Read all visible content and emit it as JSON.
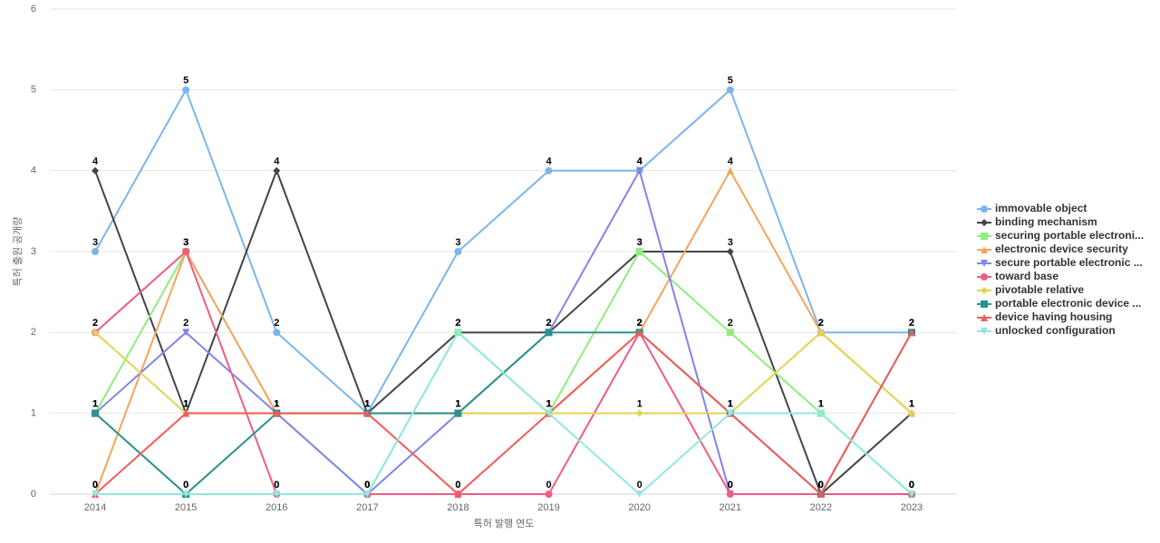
{
  "chart_data": {
    "type": "line",
    "x_label": "특허 발행 연도",
    "y_label": "특허 출원 공개량",
    "categories": [
      "2014",
      "2015",
      "2016",
      "2017",
      "2018",
      "2019",
      "2020",
      "2021",
      "2022",
      "2023"
    ],
    "ylim": [
      0,
      6
    ],
    "yticks": [
      0,
      1,
      2,
      3,
      4,
      5,
      6
    ],
    "grid": true,
    "legend": "right",
    "series": [
      {
        "name": "immovable object",
        "color": "#7cb5ec",
        "marker": "circle",
        "values": [
          3,
          5,
          2,
          1,
          3,
          4,
          4,
          5,
          2,
          2
        ]
      },
      {
        "name": "binding mechanism",
        "color": "#434348",
        "marker": "diamond",
        "values": [
          4,
          1,
          4,
          1,
          2,
          2,
          3,
          3,
          0,
          1
        ]
      },
      {
        "name": "securing portable electroni...",
        "color": "#90ed7d",
        "marker": "square",
        "values": [
          1,
          3,
          1,
          0,
          2,
          1,
          3,
          2,
          1,
          0
        ]
      },
      {
        "name": "electronic device security",
        "color": "#f7a35c",
        "marker": "triangle",
        "values": [
          0,
          3,
          1,
          1,
          1,
          1,
          2,
          4,
          2,
          1
        ]
      },
      {
        "name": "secure portable electronic ...",
        "color": "#8085e9",
        "marker": "triangle-down",
        "values": [
          1,
          2,
          1,
          0,
          1,
          2,
          4,
          0,
          0,
          0
        ]
      },
      {
        "name": "toward base",
        "color": "#f15c80",
        "marker": "circle",
        "values": [
          2,
          3,
          0,
          0,
          0,
          0,
          2,
          0,
          0,
          0
        ]
      },
      {
        "name": "pivotable relative",
        "color": "#e4d354",
        "marker": "diamond",
        "values": [
          2,
          1,
          1,
          1,
          1,
          1,
          1,
          1,
          2,
          1
        ]
      },
      {
        "name": "portable electronic device ...",
        "color": "#2b908f",
        "marker": "square",
        "values": [
          1,
          0,
          1,
          1,
          1,
          2,
          2,
          1,
          0,
          2
        ]
      },
      {
        "name": "device having housing",
        "color": "#f45b5b",
        "marker": "triangle",
        "values": [
          0,
          1,
          1,
          1,
          0,
          1,
          2,
          1,
          0,
          2
        ]
      },
      {
        "name": "unlocked configuration",
        "color": "#91e8e1",
        "marker": "triangle-down",
        "values": [
          0,
          0,
          0,
          0,
          2,
          1,
          0,
          1,
          1,
          0
        ]
      }
    ]
  }
}
